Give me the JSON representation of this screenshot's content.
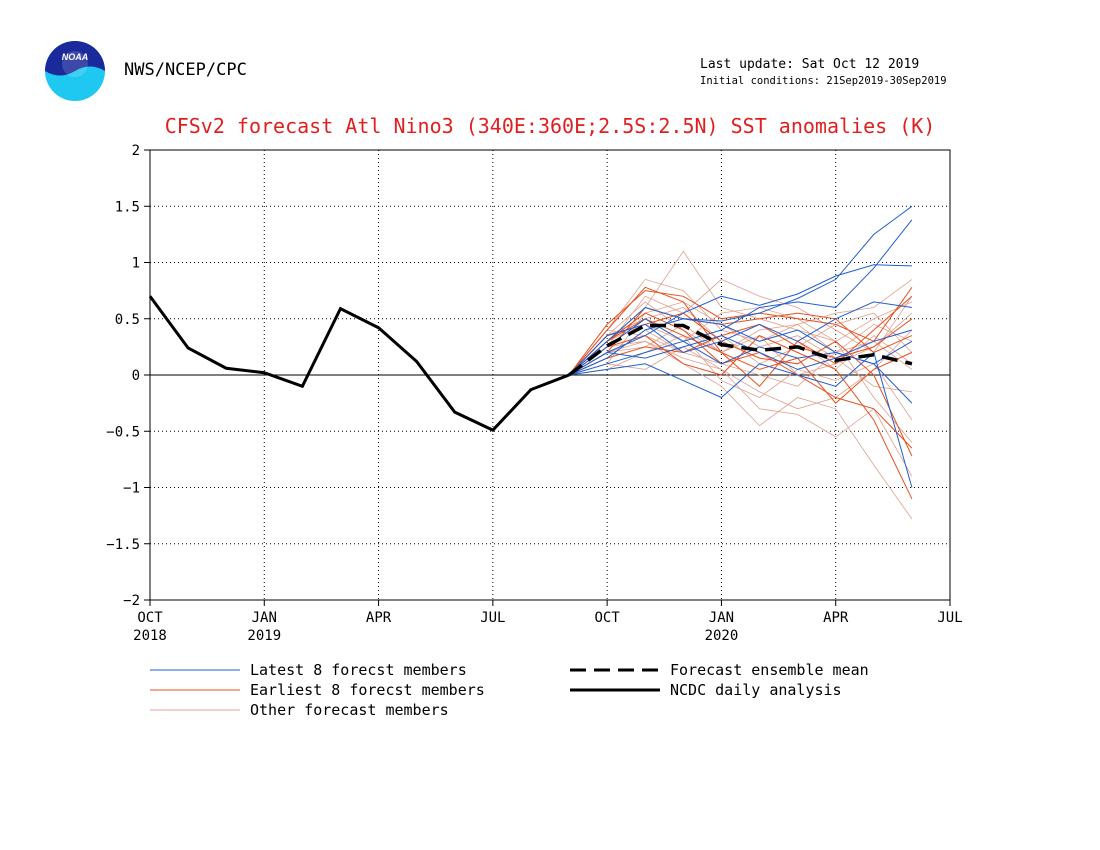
{
  "header": {
    "agency": "NWS/NCEP/CPC",
    "last_update": "Last update: Sat Oct 12 2019",
    "initial_conditions": "Initial conditions: 21Sep2019-30Sep2019"
  },
  "logo": {
    "label": "NOAA"
  },
  "chart_data": {
    "type": "line",
    "title": "CFSv2 forecast Atl Nino3 (340E:360E;2.5S:2.5N) SST anomalies (K)",
    "xlabel": "",
    "ylabel": "",
    "ylim": [
      -2,
      2
    ],
    "yticks": [
      {
        "value": 2,
        "label": "2"
      },
      {
        "value": 1.5,
        "label": "1.5"
      },
      {
        "value": 1,
        "label": "1"
      },
      {
        "value": 0.5,
        "label": "0.5"
      },
      {
        "value": 0,
        "label": "0"
      },
      {
        "value": -0.5,
        "label": "−0.5"
      },
      {
        "value": -1,
        "label": "−1"
      },
      {
        "value": -1.5,
        "label": "−1.5"
      },
      {
        "value": -2,
        "label": "−2"
      }
    ],
    "xticks": [
      {
        "value": 0,
        "label": "OCT",
        "sublabel": "2018"
      },
      {
        "value": 3,
        "label": "JAN",
        "sublabel": "2019"
      },
      {
        "value": 6,
        "label": "APR",
        "sublabel": ""
      },
      {
        "value": 9,
        "label": "JUL",
        "sublabel": ""
      },
      {
        "value": 12,
        "label": "OCT",
        "sublabel": ""
      },
      {
        "value": 15,
        "label": "JAN",
        "sublabel": "2020"
      },
      {
        "value": 18,
        "label": "APR",
        "sublabel": ""
      },
      {
        "value": 21,
        "label": "JUL",
        "sublabel": ""
      }
    ],
    "xlim": [
      0,
      21
    ],
    "grid": true,
    "legend_position": "bottom",
    "legend": [
      {
        "label": "Latest 8 forecst members",
        "color": "#1f5fd0",
        "style": "thin"
      },
      {
        "label": "Earliest 8 forecst members",
        "color": "#e8501e",
        "style": "thin"
      },
      {
        "label": "Other forecast members",
        "color": "#e0a090",
        "style": "thin"
      },
      {
        "label": "Forecast ensemble mean",
        "color": "#000000",
        "style": "dashed"
      },
      {
        "label": "NCDC daily analysis",
        "color": "#000000",
        "style": "thick"
      }
    ],
    "analysis": {
      "name": "NCDC daily analysis",
      "x": [
        0,
        1,
        2,
        3,
        4,
        5,
        6,
        7,
        8,
        9,
        10,
        11
      ],
      "y": [
        0.7,
        0.24,
        0.06,
        0.02,
        -0.1,
        0.59,
        0.42,
        0.12,
        -0.33,
        -0.49,
        -0.13,
        0.0
      ]
    },
    "ensemble_mean": {
      "name": "Forecast ensemble mean",
      "x": [
        11,
        12,
        13,
        14,
        15,
        16,
        17,
        18,
        19,
        20
      ],
      "y": [
        0.0,
        0.26,
        0.44,
        0.44,
        0.27,
        0.22,
        0.25,
        0.13,
        0.18,
        0.1
      ]
    },
    "members": [
      {
        "group": "latest",
        "x": [
          11,
          12,
          13,
          14,
          15,
          16,
          17,
          18,
          19,
          20
        ],
        "y": [
          0.0,
          0.2,
          0.35,
          0.55,
          0.7,
          0.62,
          0.72,
          0.88,
          0.98,
          0.97
        ]
      },
      {
        "group": "latest",
        "x": [
          11,
          12,
          13,
          14,
          15,
          16,
          17,
          18,
          19,
          20
        ],
        "y": [
          0.0,
          0.15,
          0.4,
          0.5,
          0.48,
          0.55,
          0.68,
          0.85,
          1.25,
          1.5
        ]
      },
      {
        "group": "latest",
        "x": [
          11,
          12,
          13,
          14,
          15,
          16,
          17,
          18,
          19,
          20
        ],
        "y": [
          0.0,
          0.1,
          0.2,
          0.3,
          0.4,
          0.6,
          0.65,
          0.6,
          0.95,
          1.38
        ]
      },
      {
        "group": "latest",
        "x": [
          11,
          12,
          13,
          14,
          15,
          16,
          17,
          18,
          19,
          20
        ],
        "y": [
          0.0,
          0.25,
          0.5,
          0.3,
          0.1,
          0.25,
          0.15,
          0.2,
          0.1,
          -0.25
        ]
      },
      {
        "group": "latest",
        "x": [
          11,
          12,
          13,
          14,
          15,
          16,
          17,
          18,
          19,
          20
        ],
        "y": [
          0.0,
          0.05,
          0.1,
          -0.05,
          -0.2,
          0.1,
          0.0,
          -0.1,
          0.2,
          -1.0
        ]
      },
      {
        "group": "latest",
        "x": [
          11,
          12,
          13,
          14,
          15,
          16,
          17,
          18,
          19,
          20
        ],
        "y": [
          0.0,
          0.3,
          0.6,
          0.5,
          0.45,
          0.3,
          0.4,
          0.2,
          0.1,
          0.3
        ]
      },
      {
        "group": "latest",
        "x": [
          11,
          12,
          13,
          14,
          15,
          16,
          17,
          18,
          19,
          20
        ],
        "y": [
          0.0,
          0.2,
          0.15,
          0.25,
          0.35,
          0.2,
          0.05,
          0.15,
          0.3,
          0.4
        ]
      },
      {
        "group": "latest",
        "x": [
          11,
          12,
          13,
          14,
          15,
          16,
          17,
          18,
          19,
          20
        ],
        "y": [
          0.0,
          0.35,
          0.45,
          0.2,
          0.3,
          0.45,
          0.3,
          0.5,
          0.65,
          0.6
        ]
      },
      {
        "group": "earliest",
        "x": [
          11,
          12,
          13,
          14,
          15,
          16,
          17,
          18,
          19,
          20
        ],
        "y": [
          0.0,
          0.45,
          0.75,
          0.7,
          0.5,
          0.55,
          0.5,
          0.45,
          0.3,
          0.78
        ]
      },
      {
        "group": "earliest",
        "x": [
          11,
          12,
          13,
          14,
          15,
          16,
          17,
          18,
          19,
          20
        ],
        "y": [
          0.0,
          0.4,
          0.78,
          0.65,
          0.2,
          -0.1,
          0.3,
          0.1,
          0.4,
          0.7
        ]
      },
      {
        "group": "earliest",
        "x": [
          11,
          12,
          13,
          14,
          15,
          16,
          17,
          18,
          19,
          20
        ],
        "y": [
          0.0,
          0.3,
          0.55,
          0.4,
          0.1,
          0.2,
          0.0,
          -0.2,
          -0.3,
          -0.65
        ]
      },
      {
        "group": "earliest",
        "x": [
          11,
          12,
          13,
          14,
          15,
          16,
          17,
          18,
          19,
          20
        ],
        "y": [
          0.0,
          0.25,
          0.35,
          0.1,
          0.0,
          0.35,
          0.2,
          0.05,
          -0.4,
          -1.1
        ]
      },
      {
        "group": "earliest",
        "x": [
          11,
          12,
          13,
          14,
          15,
          16,
          17,
          18,
          19,
          20
        ],
        "y": [
          0.0,
          0.2,
          0.6,
          0.5,
          0.45,
          0.5,
          0.55,
          0.5,
          0.2,
          0.35
        ]
      },
      {
        "group": "earliest",
        "x": [
          11,
          12,
          13,
          14,
          15,
          16,
          17,
          18,
          19,
          20
        ],
        "y": [
          0.0,
          0.35,
          0.45,
          0.55,
          0.3,
          0.15,
          0.1,
          0.3,
          0.0,
          -0.72
        ]
      },
      {
        "group": "earliest",
        "x": [
          11,
          12,
          13,
          14,
          15,
          16,
          17,
          18,
          19,
          20
        ],
        "y": [
          0.0,
          0.15,
          0.25,
          0.2,
          0.35,
          0.45,
          0.25,
          0.15,
          0.25,
          0.5
        ]
      },
      {
        "group": "earliest",
        "x": [
          11,
          12,
          13,
          14,
          15,
          16,
          17,
          18,
          19,
          20
        ],
        "y": [
          0.0,
          0.3,
          0.5,
          0.35,
          0.2,
          0.05,
          0.15,
          -0.25,
          0.05,
          0.2
        ]
      },
      {
        "group": "other",
        "x": [
          11,
          12,
          13,
          14,
          15,
          16,
          17,
          18,
          19,
          20
        ],
        "y": [
          0.0,
          0.4,
          0.85,
          0.75,
          0.4,
          0.3,
          0.45,
          0.55,
          0.6,
          0.85
        ]
      },
      {
        "group": "other",
        "x": [
          11,
          12,
          13,
          14,
          15,
          16,
          17,
          18,
          19,
          20
        ],
        "y": [
          0.0,
          0.3,
          0.6,
          1.1,
          0.6,
          0.5,
          0.4,
          0.3,
          0.5,
          0.65
        ]
      },
      {
        "group": "other",
        "x": [
          11,
          12,
          13,
          14,
          15,
          16,
          17,
          18,
          19,
          20
        ],
        "y": [
          0.0,
          0.2,
          0.3,
          0.1,
          -0.1,
          -0.45,
          -0.2,
          -0.3,
          -0.8,
          -1.28
        ]
      },
      {
        "group": "other",
        "x": [
          11,
          12,
          13,
          14,
          15,
          16,
          17,
          18,
          19,
          20
        ],
        "y": [
          0.0,
          0.1,
          0.05,
          0.25,
          0.05,
          -0.3,
          -0.35,
          -0.55,
          -0.3,
          -0.9
        ]
      },
      {
        "group": "other",
        "x": [
          11,
          12,
          13,
          14,
          15,
          16,
          17,
          18,
          19,
          20
        ],
        "y": [
          0.0,
          0.25,
          0.7,
          0.55,
          0.85,
          0.7,
          0.6,
          0.4,
          0.2,
          0.7
        ]
      },
      {
        "group": "other",
        "x": [
          11,
          12,
          13,
          14,
          15,
          16,
          17,
          18,
          19,
          20
        ],
        "y": [
          0.0,
          0.35,
          0.5,
          0.6,
          0.3,
          0.45,
          0.3,
          0.05,
          0.35,
          0.1
        ]
      },
      {
        "group": "other",
        "x": [
          11,
          12,
          13,
          14,
          15,
          16,
          17,
          18,
          19,
          20
        ],
        "y": [
          0.0,
          0.15,
          0.4,
          0.2,
          0.1,
          0.0,
          -0.1,
          0.2,
          0.45,
          0.3
        ]
      },
      {
        "group": "other",
        "x": [
          11,
          12,
          13,
          14,
          15,
          16,
          17,
          18,
          19,
          20
        ],
        "y": [
          0.0,
          0.05,
          0.2,
          0.35,
          -0.05,
          -0.2,
          0.05,
          -0.05,
          0.1,
          -0.4
        ]
      },
      {
        "group": "other",
        "x": [
          11,
          12,
          13,
          14,
          15,
          16,
          17,
          18,
          19,
          20
        ],
        "y": [
          0.0,
          0.3,
          0.45,
          0.3,
          0.55,
          0.6,
          0.5,
          0.3,
          -0.2,
          -0.6
        ]
      },
      {
        "group": "other",
        "x": [
          11,
          12,
          13,
          14,
          15,
          16,
          17,
          18,
          19,
          20
        ],
        "y": [
          0.0,
          0.2,
          0.25,
          0.45,
          0.2,
          0.35,
          0.0,
          0.1,
          0.25,
          0.55
        ]
      },
      {
        "group": "other",
        "x": [
          11,
          12,
          13,
          14,
          15,
          16,
          17,
          18,
          19,
          20
        ],
        "y": [
          0.0,
          0.4,
          0.35,
          0.2,
          0.35,
          0.1,
          0.25,
          0.45,
          0.55,
          0.2
        ]
      },
      {
        "group": "other",
        "x": [
          11,
          12,
          13,
          14,
          15,
          16,
          17,
          18,
          19,
          20
        ],
        "y": [
          0.0,
          0.1,
          0.55,
          0.65,
          0.45,
          0.25,
          0.35,
          0.15,
          -0.1,
          -0.15
        ]
      },
      {
        "group": "other",
        "x": [
          11,
          12,
          13,
          14,
          15,
          16,
          17,
          18,
          19,
          20
        ],
        "y": [
          0.0,
          0.25,
          0.3,
          0.15,
          0.05,
          -0.15,
          -0.3,
          -0.2,
          0.05,
          0.4
        ]
      },
      {
        "group": "other",
        "x": [
          11,
          12,
          13,
          14,
          15,
          16,
          17,
          18,
          19,
          20
        ],
        "y": [
          0.0,
          0.35,
          0.65,
          0.4,
          0.2,
          0.4,
          0.45,
          0.2,
          0.3,
          0.05
        ]
      }
    ]
  }
}
